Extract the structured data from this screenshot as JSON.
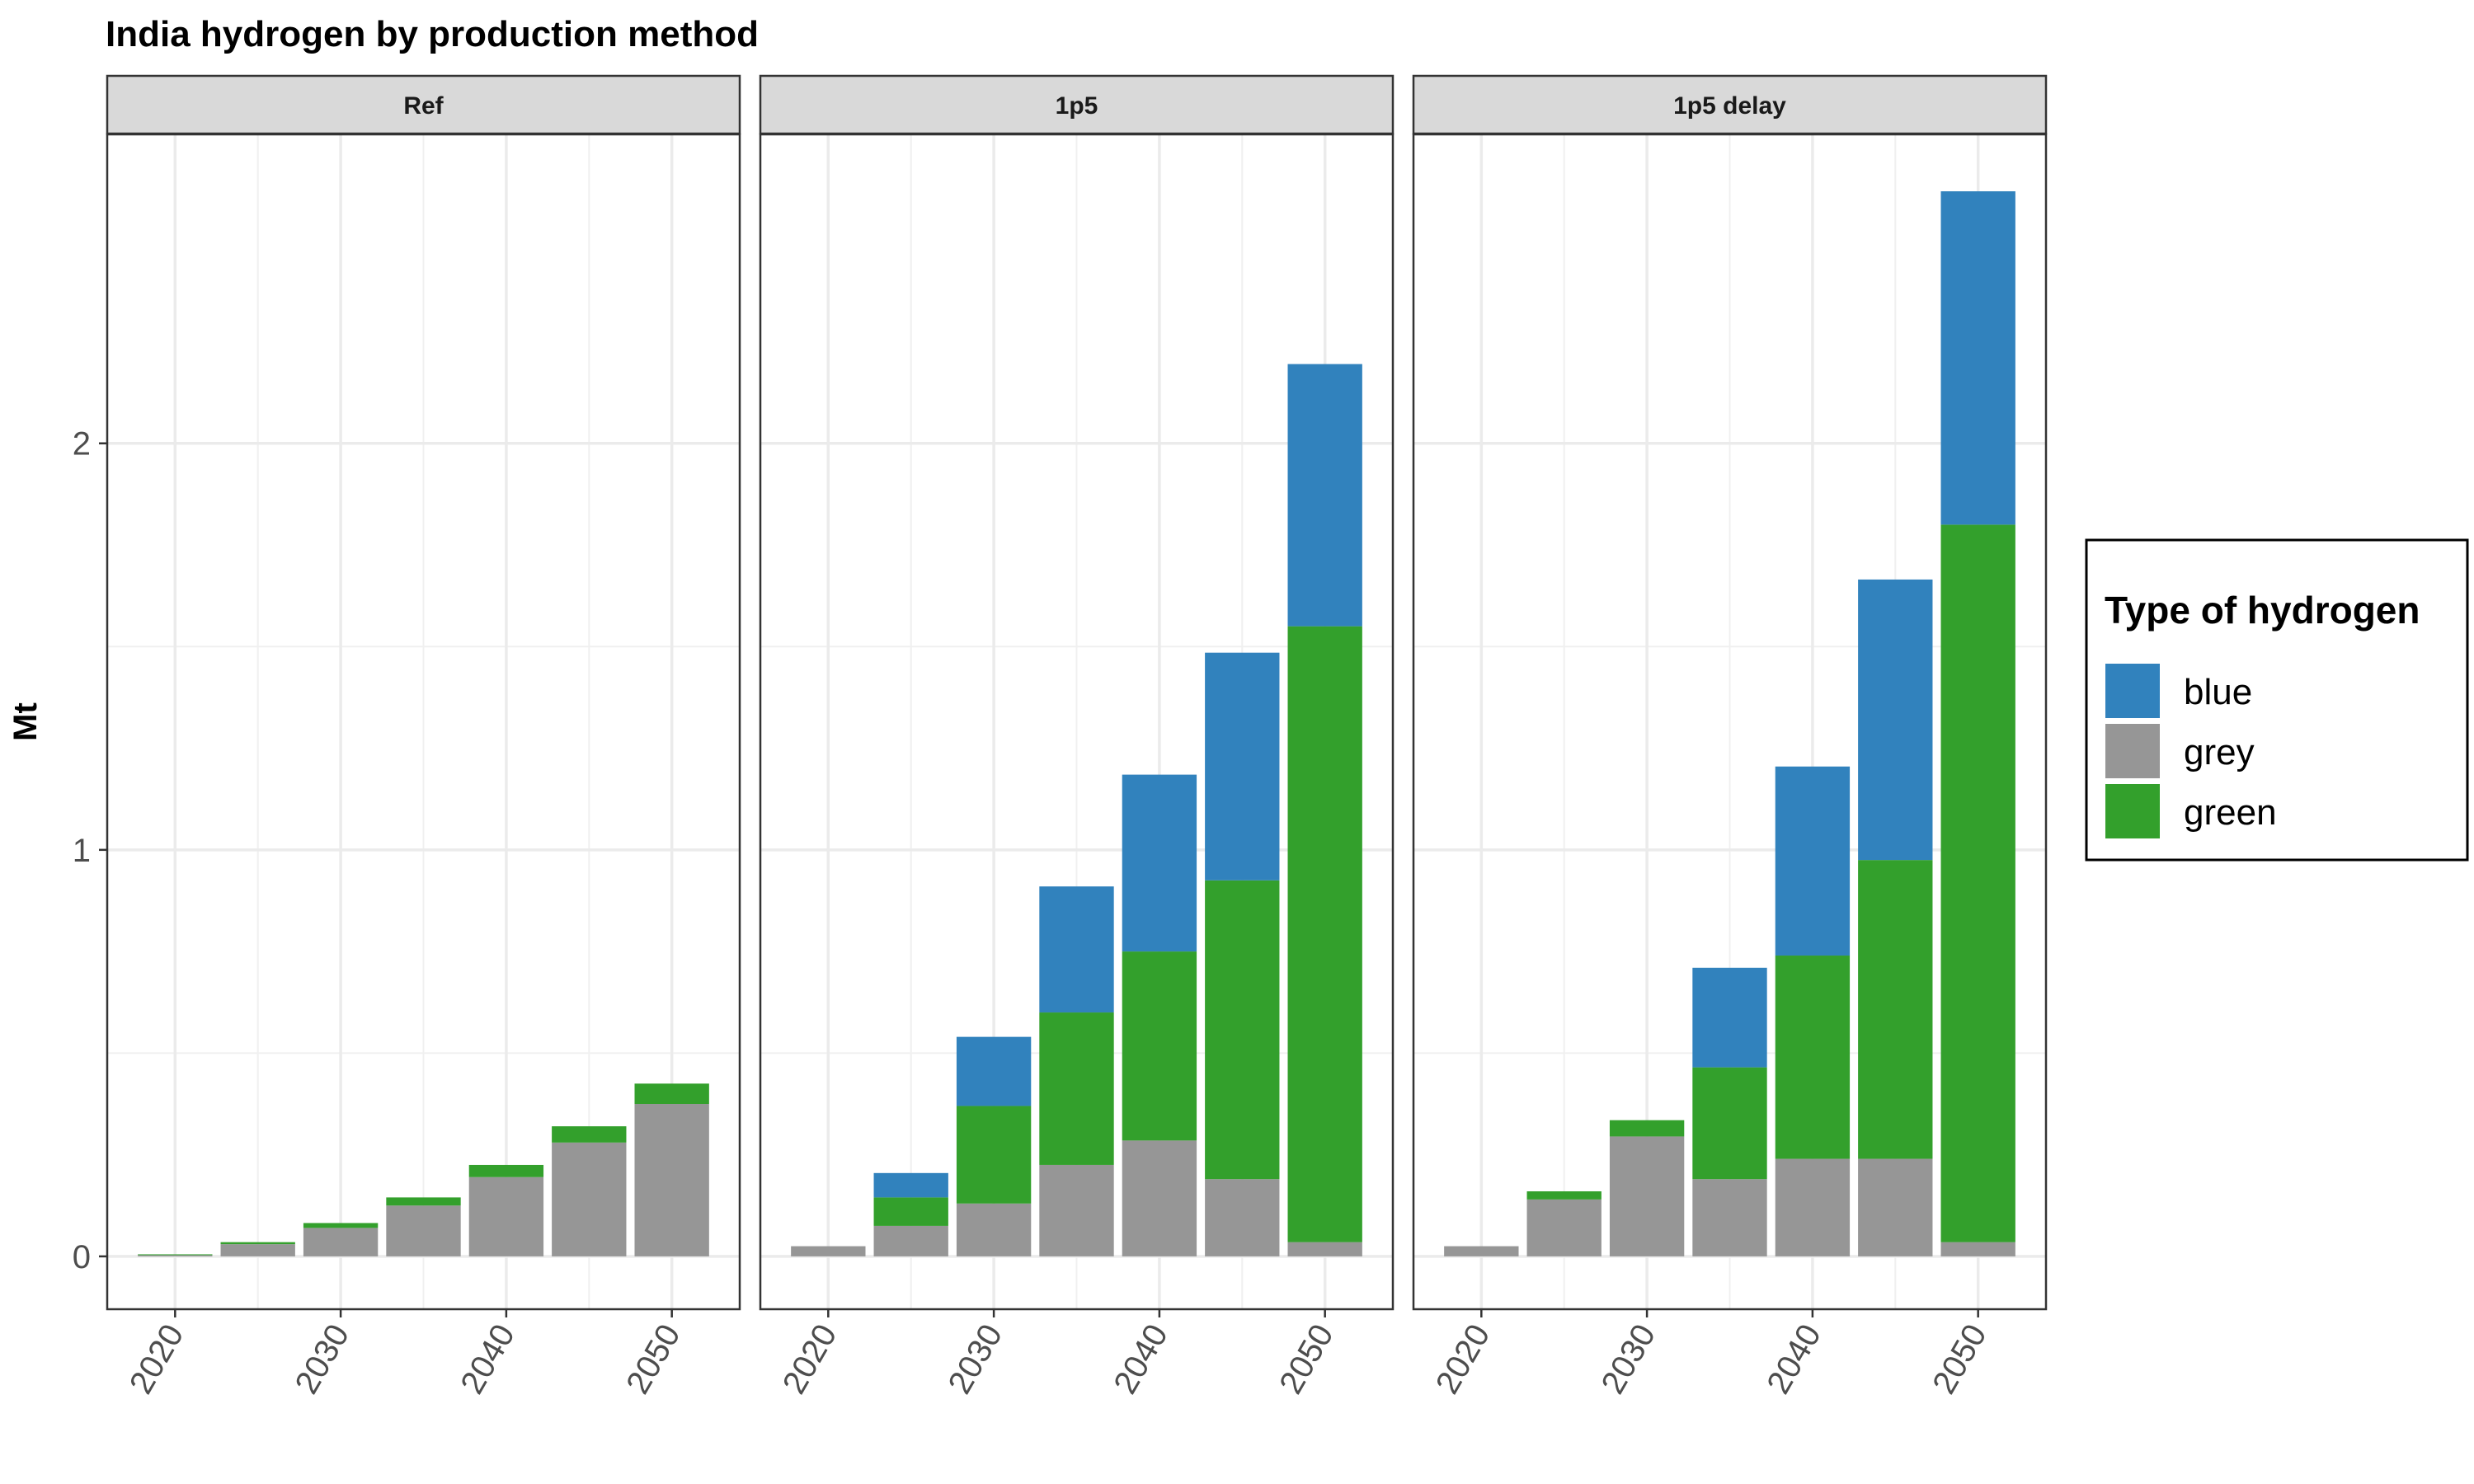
{
  "chart_data": {
    "type": "bar",
    "stacked": true,
    "title": "India hydrogen by production method",
    "xlabel": "",
    "ylabel": "Mt",
    "ylim": [
      -0.13,
      2.76
    ],
    "yticks": [
      0,
      1,
      2
    ],
    "xticks": [
      2020,
      2030,
      2040,
      2050
    ],
    "x": [
      2020,
      2025,
      2030,
      2035,
      2040,
      2045,
      2050
    ],
    "grid": true,
    "legend_position": "right",
    "legend_title": "Type of hydrogen",
    "legend_order": [
      "blue",
      "grey",
      "green"
    ],
    "stack_order": [
      "grey",
      "green",
      "blue"
    ],
    "colors": {
      "blue": "#3182bd",
      "grey": "#969696",
      "green": "#33a02c"
    },
    "panels": [
      {
        "name": "Ref",
        "series": [
          {
            "name": "grey",
            "values": [
              0.003,
              0.03,
              0.07,
              0.125,
              0.195,
              0.28,
              0.375
            ]
          },
          {
            "name": "green",
            "values": [
              0.002,
              0.005,
              0.012,
              0.02,
              0.03,
              0.04,
              0.05
            ]
          },
          {
            "name": "blue",
            "values": [
              0,
              0,
              0,
              0,
              0,
              0,
              0
            ]
          }
        ]
      },
      {
        "name": "1p5",
        "series": [
          {
            "name": "grey",
            "values": [
              0.025,
              0.075,
              0.13,
              0.225,
              0.285,
              0.19,
              0.035
            ]
          },
          {
            "name": "green",
            "values": [
              0,
              0.07,
              0.24,
              0.375,
              0.465,
              0.735,
              1.515
            ]
          },
          {
            "name": "blue",
            "values": [
              0,
              0.06,
              0.17,
              0.31,
              0.435,
              0.56,
              0.645
            ]
          }
        ]
      },
      {
        "name": "1p5 delay",
        "series": [
          {
            "name": "grey",
            "values": [
              0.025,
              0.14,
              0.295,
              0.19,
              0.24,
              0.24,
              0.035
            ]
          },
          {
            "name": "green",
            "values": [
              0,
              0.02,
              0.04,
              0.275,
              0.5,
              0.735,
              1.765
            ]
          },
          {
            "name": "blue",
            "values": [
              0,
              0,
              0,
              0.245,
              0.465,
              0.69,
              0.82
            ]
          }
        ]
      }
    ]
  }
}
